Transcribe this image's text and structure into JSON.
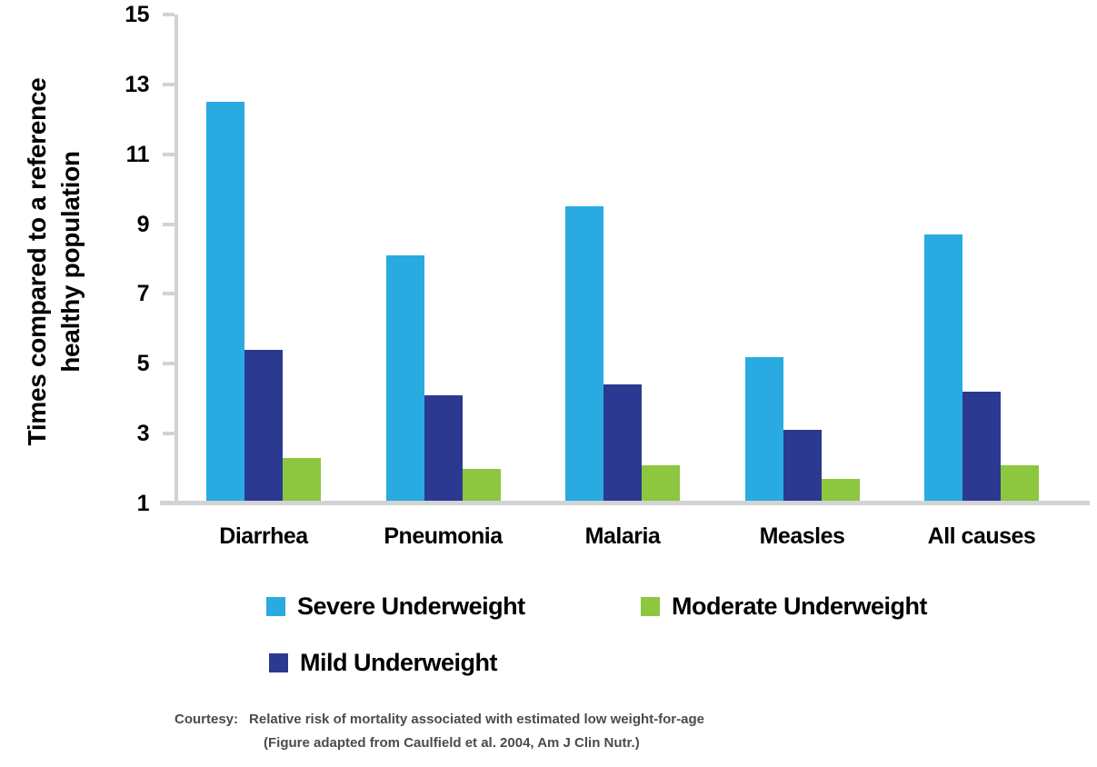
{
  "chart_data": {
    "type": "bar",
    "title": "",
    "xlabel": "",
    "ylabel": "Times compared to a reference healthy population",
    "ylim": [
      1,
      15
    ],
    "yticks": [
      1,
      3,
      5,
      7,
      9,
      11,
      13,
      15
    ],
    "grid": false,
    "legend_position": "bottom",
    "axis_color": "#D1D3D4",
    "categories": [
      "Diarrhea",
      "Pneumonia",
      "Malaria",
      "Measles",
      "All causes"
    ],
    "series": [
      {
        "name": "Severe Underweight",
        "color": "#29ABE2",
        "values": [
          12.5,
          8.1,
          9.5,
          5.2,
          8.7
        ]
      },
      {
        "name": "Mild Underweight",
        "color": "#2B3990",
        "values": [
          5.4,
          4.1,
          4.4,
          3.1,
          4.2
        ]
      },
      {
        "name": "Moderate Underweight",
        "color": "#8DC63F",
        "values": [
          2.3,
          2.0,
          2.1,
          1.7,
          2.1
        ]
      }
    ]
  },
  "caption": {
    "prefix": "Courtesy:",
    "line1": "Relative risk of mortality associated with estimated low weight-for-age",
    "line2": "(Figure adapted from Caulfield et al. 2004, Am J Clin Nutr.)"
  }
}
